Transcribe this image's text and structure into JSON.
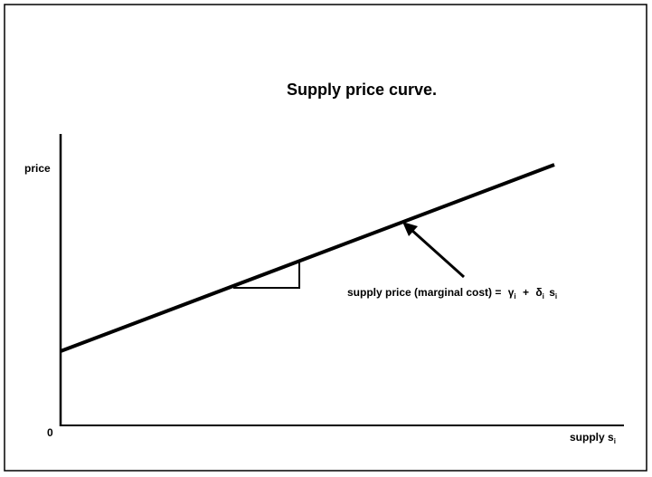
{
  "diagram": {
    "title": "Supply price curve.",
    "y_axis_label": "price",
    "origin_label": "0",
    "x_axis_label": {
      "text": "supply",
      "symbol": "s",
      "sub": "i"
    },
    "annotation": {
      "text": "supply price (marginal cost) =",
      "term1": {
        "symbol": "γ",
        "sub": "i"
      },
      "operator": "+",
      "term2": {
        "symbol": "δ",
        "sub": "i"
      },
      "term3": {
        "symbol": "s",
        "sub": "i"
      }
    }
  }
}
